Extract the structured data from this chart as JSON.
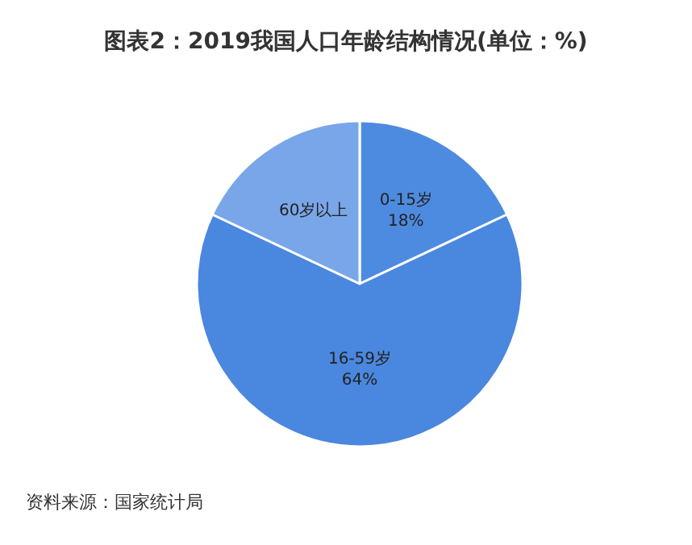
{
  "chart_data": {
    "type": "pie",
    "title": "图表2：2019我国人口年龄结构情况(单位：%)",
    "categories": [
      "0-15岁",
      "16-59岁",
      "60岁以上"
    ],
    "values": [
      18,
      64,
      18
    ],
    "value_labels": [
      "18%",
      "64%",
      null
    ],
    "colors": [
      "#4d8be0",
      "#4a87de",
      "#79a6e8"
    ],
    "legend": false,
    "annotations": [
      "资料来源：国家统计局"
    ]
  }
}
